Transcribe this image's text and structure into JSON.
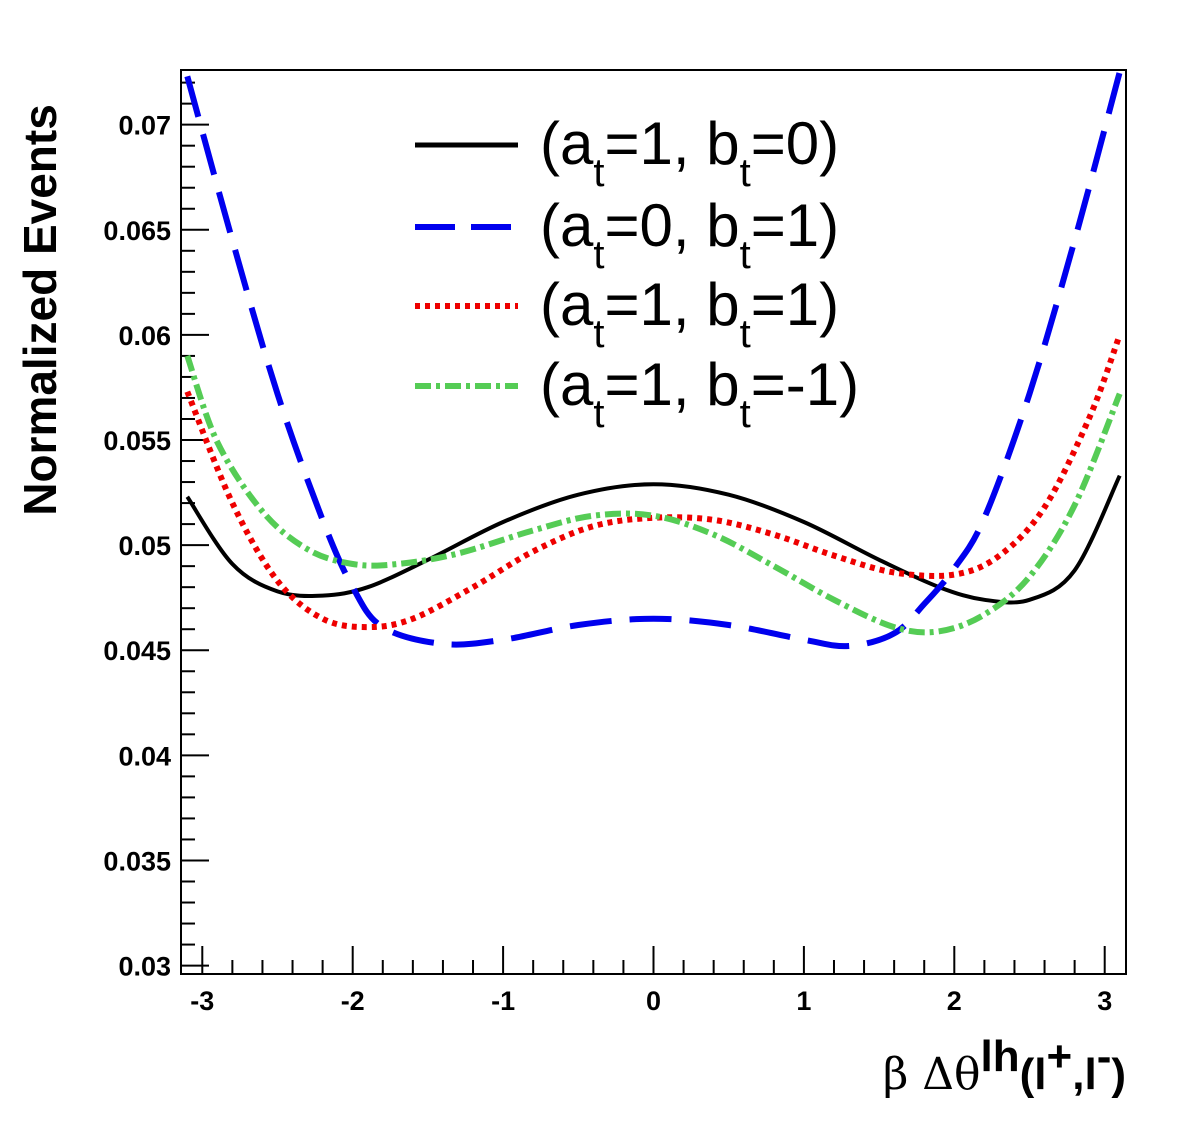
{
  "chart_data": {
    "type": "line",
    "title": "",
    "xlabel": {
      "beta": "β",
      "delta_theta": "Δθ",
      "superscript": "lh",
      "open": "(l",
      "sup_plus": "+",
      "comma": ",l",
      "sup_minus": "-",
      "close": ")"
    },
    "ylabel": "Normalized Events",
    "xlim": [
      -3.1416,
      3.1416
    ],
    "ylim": [
      0.0296,
      0.0726
    ],
    "x_ticks": [
      -3,
      -2,
      -1,
      0,
      1,
      2,
      3
    ],
    "x_tick_labels": [
      "-3",
      "-2",
      "-1",
      "0",
      "1",
      "2",
      "3"
    ],
    "y_ticks": [
      0.03,
      0.035,
      0.04,
      0.045,
      0.05,
      0.055,
      0.06,
      0.065,
      0.07
    ],
    "y_tick_labels": [
      "0.03",
      "0.035",
      "0.04",
      "0.045",
      "0.05",
      "0.055",
      "0.06",
      "0.065",
      "0.07"
    ],
    "legend_position": "top-right",
    "series": [
      {
        "name": "(a_t=1, b_t=0)",
        "label": {
          "open": "(a",
          "sub1": "t",
          "mid": "=1, b",
          "sub2": "t",
          "end": "=0)"
        },
        "color": "#000000",
        "style": "solid",
        "x": [
          -3.1,
          -2.8,
          -2.5,
          -2.2,
          -1.9,
          -1.5,
          -1.0,
          -0.5,
          0.0,
          0.5,
          1.0,
          1.5,
          1.9,
          2.2,
          2.5,
          2.8,
          3.1
        ],
        "y": [
          0.0523,
          0.0491,
          0.0478,
          0.0476,
          0.048,
          0.0493,
          0.0511,
          0.0524,
          0.0529,
          0.0524,
          0.0511,
          0.0493,
          0.048,
          0.0474,
          0.0474,
          0.0488,
          0.0533
        ]
      },
      {
        "name": "(a_t=0, b_t=1)",
        "label": {
          "open": "(a",
          "sub1": "t",
          "mid": "=0, b",
          "sub2": "t",
          "end": "=1)"
        },
        "color": "#0000ee",
        "style": "dashed",
        "x": [
          -3.1,
          -2.8,
          -2.5,
          -2.2,
          -2.0,
          -1.8,
          -1.4,
          -1.0,
          -0.5,
          0.0,
          0.5,
          1.0,
          1.3,
          1.6,
          1.8,
          2.0,
          2.2,
          2.5,
          2.8,
          3.1
        ],
        "y": [
          0.0723,
          0.0645,
          0.0572,
          0.0512,
          0.048,
          0.0461,
          0.0453,
          0.0455,
          0.0462,
          0.0465,
          0.0462,
          0.0455,
          0.0452,
          0.0458,
          0.0472,
          0.0489,
          0.0513,
          0.0572,
          0.0645,
          0.0725
        ]
      },
      {
        "name": "(a_t=1, b_t=1)",
        "label": {
          "open": "(a",
          "sub1": "t",
          "mid": "=1, b",
          "sub2": "t",
          "end": "=1)"
        },
        "color": "#ee0000",
        "style": "dotted",
        "x": [
          -3.1,
          -2.8,
          -2.5,
          -2.2,
          -1.9,
          -1.6,
          -1.2,
          -0.8,
          -0.4,
          0.0,
          0.4,
          0.8,
          1.2,
          1.6,
          2.0,
          2.3,
          2.6,
          2.9,
          3.1
        ],
        "y": [
          0.0573,
          0.052,
          0.0483,
          0.0465,
          0.0461,
          0.0465,
          0.048,
          0.0497,
          0.0509,
          0.0513,
          0.0512,
          0.0505,
          0.0495,
          0.0487,
          0.0486,
          0.0495,
          0.0518,
          0.0561,
          0.06
        ]
      },
      {
        "name": "(a_t=1, b_t=-1)",
        "label": {
          "open": "(a",
          "sub1": "t",
          "mid": "=1, b",
          "sub2": "t",
          "end": "=-1)"
        },
        "color": "#55cc55",
        "style": "dashdot",
        "x": [
          -3.1,
          -2.9,
          -2.6,
          -2.3,
          -2.0,
          -1.7,
          -1.3,
          -0.8,
          -0.4,
          0.0,
          0.4,
          0.8,
          1.2,
          1.6,
          1.9,
          2.2,
          2.5,
          2.8,
          3.1
        ],
        "y": [
          0.059,
          0.0549,
          0.0516,
          0.0498,
          0.0491,
          0.0491,
          0.0496,
          0.0507,
          0.0514,
          0.0514,
          0.0505,
          0.049,
          0.0474,
          0.0461,
          0.0459,
          0.0467,
          0.0485,
          0.0519,
          0.0572
        ]
      }
    ]
  }
}
